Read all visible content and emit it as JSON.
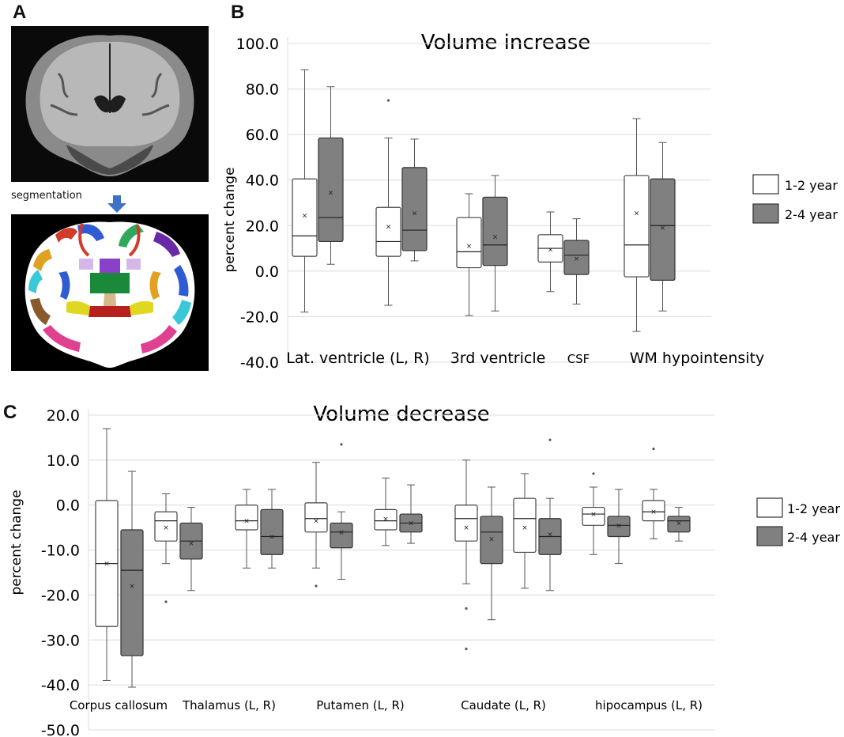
{
  "panels": {
    "a_label": "A",
    "b_label": "B",
    "c_label": "C",
    "segmentation_label": "segmentation"
  },
  "colors": {
    "box_1_2": "#ffffff",
    "box_2_4": "#808080",
    "arrow": "#3f72c6"
  },
  "chart_data": [
    {
      "type": "box",
      "title": "Volume increase",
      "ylabel": "percent change",
      "ylim": [
        -40,
        100
      ],
      "yticks": [
        "-40.0",
        "-20.0",
        "0.0",
        "20.0",
        "40.0",
        "60.0",
        "80.0",
        "100.0"
      ],
      "grid": true,
      "legend_position": "right",
      "series": [
        {
          "name": "1-2 year"
        },
        {
          "name": "2-4 year"
        }
      ],
      "groups": [
        {
          "label": "Lat. ventricle (L, R)",
          "boxes": [
            {
              "series": "1-2 year",
              "min": -18,
              "q1": 6.5,
              "median": 15.5,
              "q3": 40.5,
              "max": 88.5,
              "mean": 24.5,
              "outliers": []
            },
            {
              "series": "2-4 year",
              "min": 3,
              "q1": 13,
              "median": 23.5,
              "q3": 58.5,
              "max": 81,
              "mean": 34.5,
              "outliers": []
            }
          ]
        },
        {
          "label": "",
          "boxes": [
            {
              "series": "1-2 year",
              "min": -15,
              "q1": 6.5,
              "median": 13,
              "q3": 28,
              "max": 58.5,
              "mean": 19.5,
              "outliers": [
                75
              ]
            },
            {
              "series": "2-4 year",
              "min": 4.5,
              "q1": 9,
              "median": 18,
              "q3": 45.5,
              "max": 58,
              "mean": 25.5,
              "outliers": []
            }
          ]
        },
        {
          "label": "3rd ventricle",
          "boxes": [
            {
              "series": "1-2 year",
              "min": -19.5,
              "q1": 1.5,
              "median": 8.5,
              "q3": 23.5,
              "max": 34,
              "mean": 11,
              "outliers": []
            },
            {
              "series": "2-4 year",
              "min": -17.5,
              "q1": 2.5,
              "median": 11.5,
              "q3": 32.5,
              "max": 42,
              "mean": 15,
              "outliers": []
            }
          ]
        },
        {
          "label": "CSF",
          "boxes": [
            {
              "series": "1-2 year",
              "min": -9,
              "q1": 4,
              "median": 10,
              "q3": 16,
              "max": 26,
              "mean": 9.5,
              "outliers": []
            },
            {
              "series": "2-4 year",
              "min": -14.5,
              "q1": -1.5,
              "median": 7,
              "q3": 13.5,
              "max": 23,
              "mean": 5.5,
              "outliers": []
            }
          ]
        },
        {
          "label": "WM hypointensity",
          "boxes": [
            {
              "series": "1-2 year",
              "min": -26.5,
              "q1": -2.5,
              "median": 11.5,
              "q3": 42,
              "max": 67,
              "mean": 25.5,
              "outliers": []
            },
            {
              "series": "2-4 year",
              "min": -17.5,
              "q1": -4,
              "median": 20,
              "q3": 40.5,
              "max": 56.5,
              "mean": 19,
              "outliers": []
            }
          ]
        }
      ]
    },
    {
      "type": "box",
      "title": "Volume decrease",
      "ylabel": "percent change",
      "ylim": [
        -50,
        20
      ],
      "yticks": [
        "-50.0",
        "-40.0",
        "-30.0",
        "-20.0",
        "-10.0",
        "0.0",
        "10.0",
        "20.0"
      ],
      "grid": true,
      "legend_position": "right",
      "series": [
        {
          "name": "1-2 year"
        },
        {
          "name": "2-4 year"
        }
      ],
      "groups": [
        {
          "label": "Corpus callosum",
          "boxes": [
            {
              "series": "1-2 year",
              "min": -39,
              "q1": -27,
              "median": -13,
              "q3": 1,
              "max": 17,
              "mean": -13,
              "outliers": []
            },
            {
              "series": "2-4 year",
              "min": -40.5,
              "q1": -33.5,
              "median": -14.5,
              "q3": -5.5,
              "max": 7.5,
              "mean": -18,
              "outliers": []
            }
          ]
        },
        {
          "label": "Thalamus (L, R)",
          "boxes": [
            {
              "series": "1-2 year",
              "min": -13,
              "q1": -8,
              "median": -3.5,
              "q3": -1.5,
              "max": 2.5,
              "mean": -5,
              "outliers": [
                -21.5
              ]
            },
            {
              "series": "2-4 year",
              "min": -19,
              "q1": -12,
              "median": -8,
              "q3": -4,
              "max": -0.5,
              "mean": -8.5,
              "outliers": []
            }
          ]
        },
        {
          "label": "",
          "boxes": [
            {
              "series": "1-2 year",
              "min": -14,
              "q1": -5.5,
              "median": -3.5,
              "q3": 0,
              "max": 3.5,
              "mean": -3.5,
              "outliers": []
            },
            {
              "series": "2-4 year",
              "min": -14,
              "q1": -11,
              "median": -7,
              "q3": -1,
              "max": 3.5,
              "mean": -7,
              "outliers": []
            }
          ]
        },
        {
          "label": "Putamen (L, R)",
          "boxes": [
            {
              "series": "1-2 year",
              "min": -14,
              "q1": -6,
              "median": -3,
              "q3": 0.5,
              "max": 9.5,
              "mean": -3.5,
              "outliers": [
                -18
              ]
            },
            {
              "series": "2-4 year",
              "min": -16.5,
              "q1": -9.5,
              "median": -6,
              "q3": -4,
              "max": -1.5,
              "mean": -6,
              "outliers": [
                13.5
              ]
            }
          ]
        },
        {
          "label": "",
          "boxes": [
            {
              "series": "1-2 year",
              "min": -9,
              "q1": -5.5,
              "median": -3.5,
              "q3": -1,
              "max": 6,
              "mean": -3,
              "outliers": []
            },
            {
              "series": "2-4 year",
              "min": -8.5,
              "q1": -6,
              "median": -4,
              "q3": -2,
              "max": 4.5,
              "mean": -4,
              "outliers": []
            }
          ]
        },
        {
          "label": "Caudate (L, R)",
          "boxes": [
            {
              "series": "1-2 year",
              "min": -17.5,
              "q1": -8,
              "median": -3,
              "q3": 0,
              "max": 10,
              "mean": -5,
              "outliers": [
                -23,
                -32
              ]
            },
            {
              "series": "2-4 year",
              "min": -25.5,
              "q1": -13,
              "median": -6,
              "q3": -2.5,
              "max": 4,
              "mean": -7.5,
              "outliers": []
            }
          ]
        },
        {
          "label": "",
          "boxes": [
            {
              "series": "1-2 year",
              "min": -18.5,
              "q1": -10.5,
              "median": -3,
              "q3": 1.5,
              "max": 7,
              "mean": -5,
              "outliers": []
            },
            {
              "series": "2-4 year",
              "min": -19,
              "q1": -11,
              "median": -7,
              "q3": -3,
              "max": 1.5,
              "mean": -6.5,
              "outliers": [
                14.5
              ]
            }
          ]
        },
        {
          "label": "hipocampus (L, R)",
          "boxes": [
            {
              "series": "1-2 year",
              "min": -11,
              "q1": -4.5,
              "median": -2,
              "q3": -0.5,
              "max": 4,
              "mean": -2,
              "outliers": [
                7
              ]
            },
            {
              "series": "2-4 year",
              "min": -13,
              "q1": -7,
              "median": -4.5,
              "q3": -2.5,
              "max": 3.5,
              "mean": -4.5,
              "outliers": []
            }
          ]
        },
        {
          "label": "",
          "boxes": [
            {
              "series": "1-2 year",
              "min": -7.5,
              "q1": -3.5,
              "median": -1.5,
              "q3": 1,
              "max": 3.5,
              "mean": -1.5,
              "outliers": [
                12.5
              ]
            },
            {
              "series": "2-4 year",
              "min": -8,
              "q1": -6,
              "median": -3.5,
              "q3": -2.5,
              "max": -0.5,
              "mean": -4,
              "outliers": []
            }
          ]
        }
      ]
    }
  ]
}
